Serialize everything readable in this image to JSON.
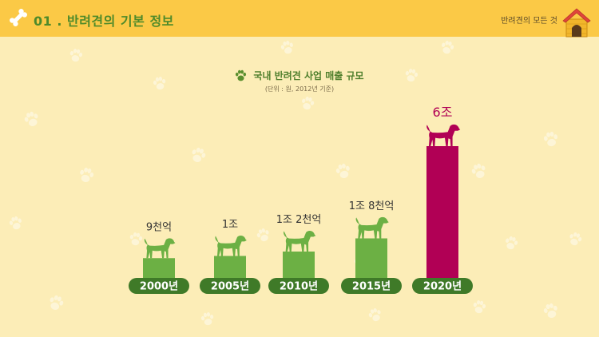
{
  "header": {
    "section_title": "01 . 반려견의 기본 정보",
    "tag": "반려견의 모든 것"
  },
  "colors": {
    "background": "#fcedb7",
    "header_bar": "#fbc946",
    "bar_green": "#6cb044",
    "bar_highlight": "#b10055",
    "pill": "#3f7a28",
    "label_dark": "#333333"
  },
  "icons": {
    "header_left": "bone-icon",
    "header_right": "doghouse-icon",
    "title": "paw-icon",
    "bar_top": "dog-icon"
  },
  "chart_data": {
    "type": "bar",
    "title": "국내 반려견 사업 매출 규모",
    "subtitle": "(단위 : 원, 2012년 기준)",
    "categories": [
      "2000년",
      "2005년",
      "2010년",
      "2015년",
      "2020년"
    ],
    "values": [
      900000000000,
      1000000000000,
      1200000000000,
      1800000000000,
      6000000000000
    ],
    "value_labels": [
      "9천억",
      "1조",
      "1조 2천억",
      "1조 8천억",
      "6조"
    ],
    "highlight_index": 4,
    "xlabel": "",
    "ylabel": "",
    "grid": false,
    "legend": false
  }
}
